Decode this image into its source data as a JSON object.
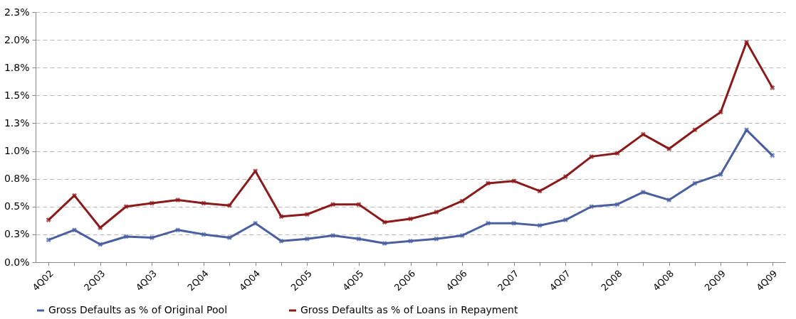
{
  "chart_data": {
    "type": "line",
    "categories": [
      "4Q02",
      null,
      "2Q03",
      null,
      "4Q03",
      null,
      "2Q04",
      null,
      "4Q04",
      null,
      "2Q05",
      null,
      "4Q05",
      null,
      "2Q06",
      null,
      "4Q06",
      null,
      "2Q07",
      null,
      "4Q07",
      null,
      "2Q08",
      null,
      "4Q08",
      null,
      "2Q09",
      null,
      "4Q09"
    ],
    "series": [
      {
        "name": "Gross Defaults as % of Original Pool",
        "color": "#4a5fa0",
        "values": [
          0.2,
          0.29,
          0.16,
          0.23,
          0.22,
          0.29,
          0.25,
          0.22,
          0.35,
          0.19,
          0.21,
          0.24,
          0.21,
          0.17,
          0.19,
          0.21,
          0.24,
          0.35,
          0.35,
          0.33,
          0.38,
          0.5,
          0.52,
          0.63,
          0.56,
          0.71,
          0.79,
          1.19,
          0.96
        ]
      },
      {
        "name": "Gross Defaults as % of Loans in Repayment",
        "color": "#8b1a1a",
        "values": [
          0.38,
          0.6,
          0.31,
          0.5,
          0.53,
          0.56,
          0.53,
          0.51,
          0.82,
          0.41,
          0.43,
          0.52,
          0.52,
          0.36,
          0.39,
          0.45,
          0.55,
          0.71,
          0.73,
          0.64,
          0.77,
          0.95,
          0.98,
          1.15,
          1.02,
          1.19,
          1.35,
          1.98,
          1.57
        ]
      }
    ],
    "ylim": [
      0,
      2.25
    ],
    "yticks": [
      {
        "value": 0,
        "label": "0.0%"
      },
      {
        "value": 0.25,
        "label": "0.3%"
      },
      {
        "value": 0.5,
        "label": "0.5%"
      },
      {
        "value": 0.75,
        "label": "0.8%"
      },
      {
        "value": 1.0,
        "label": "1.0%"
      },
      {
        "value": 1.25,
        "label": "1.3%"
      },
      {
        "value": 1.5,
        "label": "1.5%"
      },
      {
        "value": 1.75,
        "label": "1.8%"
      },
      {
        "value": 2.0,
        "label": "2.0%"
      },
      {
        "value": 2.25,
        "label": "2.3%"
      }
    ],
    "grid": "y",
    "legend": "bottom",
    "marker": "cross",
    "line_style": "solid"
  }
}
